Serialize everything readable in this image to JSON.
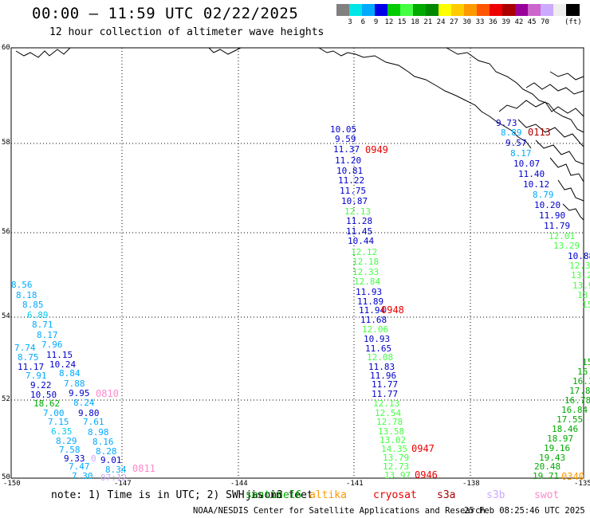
{
  "header": {
    "title": "00:00 – 11:59 UTC 02/22/2025",
    "subtitle": "12 hour collection of altimeter wave heights"
  },
  "legend": {
    "unit": "(ft)",
    "colors": [
      "#808080",
      "#00e6e6",
      "#00aaff",
      "#0000e6",
      "#00cc00",
      "#44ff44",
      "#00aa00",
      "#008800",
      "#ffff00",
      "#ffcc00",
      "#ff9900",
      "#ff5500",
      "#ee0000",
      "#aa0000",
      "#990099",
      "#cc66cc",
      "#ccaaff",
      "#eeeeee",
      "#000000"
    ],
    "labels": [
      "3",
      "6",
      "9",
      "12",
      "15",
      "18",
      "21",
      "24",
      "27",
      "30",
      "33",
      "36",
      "39",
      "42",
      "45",
      "70"
    ]
  },
  "axes": {
    "lat_ticks": [
      "60",
      "58",
      "56",
      "54",
      "52",
      "50"
    ],
    "lon_ticks": [
      "-150",
      "-147",
      "-144",
      "-141",
      "-138",
      "-135"
    ]
  },
  "tracks": [
    {
      "name": "west",
      "color_key": "mixed",
      "labels": [
        {
          "t": "8.56",
          "c": "#00aaff"
        },
        {
          "t": "8.18",
          "c": "#00aaff"
        },
        {
          "t": "8.85",
          "c": "#00aaff"
        },
        {
          "t": "6.89",
          "c": "#00ccee"
        },
        {
          "t": "8.71",
          "c": "#00aaff"
        },
        {
          "t": "8.17",
          "c": "#00aaff"
        },
        {
          "t": "7.74",
          "c": "#00aaff"
        },
        {
          "t": "7.96",
          "c": "#00aaff"
        },
        {
          "t": "8.75",
          "c": "#00aaff"
        },
        {
          "t": "11.15",
          "c": "#0000cc"
        },
        {
          "t": "11.17",
          "c": "#0000cc"
        },
        {
          "t": "10.24",
          "c": "#0000cc"
        },
        {
          "t": "7.91",
          "c": "#00aaff"
        },
        {
          "t": "8.84",
          "c": "#00aaff"
        },
        {
          "t": "9.22",
          "c": "#0000cc"
        },
        {
          "t": "7.88",
          "c": "#00aaff"
        },
        {
          "t": "10.50",
          "c": "#0000cc"
        },
        {
          "t": "9.95",
          "c": "#0000cc"
        },
        {
          "t": "18.62",
          "c": "#00aa00"
        },
        {
          "t": "8.24",
          "c": "#00aaff"
        },
        {
          "t": "7.00",
          "c": "#00aaff"
        },
        {
          "t": "9.80",
          "c": "#0000cc"
        },
        {
          "t": "7.15",
          "c": "#00aaff"
        },
        {
          "t": "7.61",
          "c": "#00aaff"
        },
        {
          "t": "6.35",
          "c": "#00ccee"
        },
        {
          "t": "8.98",
          "c": "#00aaff"
        },
        {
          "t": "8.29",
          "c": "#00aaff"
        },
        {
          "t": "8.16",
          "c": "#00aaff"
        },
        {
          "t": "7.58",
          "c": "#00aaff"
        },
        {
          "t": "8.28",
          "c": "#00aaff"
        },
        {
          "t": "9.33",
          "c": "#0000cc"
        },
        {
          "t": "9.01",
          "c": "#0000cc"
        },
        {
          "t": "7.47",
          "c": "#00aaff"
        },
        {
          "t": "8.34",
          "c": "#00aaff"
        },
        {
          "t": "7.30",
          "c": "#00aaff"
        },
        {
          "t": "0",
          "c": "#ccaaff"
        },
        {
          "t": "07:12",
          "c": "#ccaaff"
        }
      ]
    },
    {
      "name": "central",
      "labels": [
        {
          "t": "10.05",
          "c": "#0000cc"
        },
        {
          "t": "9.59",
          "c": "#0000cc"
        },
        {
          "t": "11.37",
          "c": "#0000cc"
        },
        {
          "t": "11.20",
          "c": "#0000cc"
        },
        {
          "t": "10.81",
          "c": "#0000cc"
        },
        {
          "t": "11.22",
          "c": "#0000cc"
        },
        {
          "t": "11.75",
          "c": "#0000cc"
        },
        {
          "t": "10.87",
          "c": "#0000cc"
        },
        {
          "t": "12.13",
          "c": "#44ff44"
        },
        {
          "t": "11.28",
          "c": "#0000cc"
        },
        {
          "t": "11.45",
          "c": "#0000cc"
        },
        {
          "t": "10.44",
          "c": "#0000cc"
        },
        {
          "t": "12.12",
          "c": "#44ff44"
        },
        {
          "t": "12.18",
          "c": "#44ff44"
        },
        {
          "t": "12.33",
          "c": "#44ff44"
        },
        {
          "t": "12.84",
          "c": "#44ff44"
        },
        {
          "t": "11.93",
          "c": "#0000cc"
        },
        {
          "t": "11.89",
          "c": "#0000cc"
        },
        {
          "t": "11.94",
          "c": "#0000cc"
        },
        {
          "t": "11.68",
          "c": "#0000cc"
        },
        {
          "t": "12.06",
          "c": "#44ff44"
        },
        {
          "t": "10.93",
          "c": "#0000cc"
        },
        {
          "t": "11.65",
          "c": "#0000cc"
        },
        {
          "t": "12.08",
          "c": "#44ff44"
        },
        {
          "t": "11.83",
          "c": "#0000cc"
        },
        {
          "t": "11.96",
          "c": "#0000cc"
        },
        {
          "t": "11.77",
          "c": "#0000cc"
        },
        {
          "t": "11.77",
          "c": "#0000cc"
        },
        {
          "t": "12.13",
          "c": "#44ff44"
        },
        {
          "t": "12.54",
          "c": "#44ff44"
        },
        {
          "t": "12.78",
          "c": "#44ff44"
        },
        {
          "t": "13.58",
          "c": "#44ff44"
        },
        {
          "t": "13.02",
          "c": "#44ff44"
        },
        {
          "t": "14.35",
          "c": "#44ff44"
        },
        {
          "t": "13.79",
          "c": "#44ff44"
        },
        {
          "t": "12.73",
          "c": "#44ff44"
        },
        {
          "t": "13.97",
          "c": "#44ff44"
        }
      ]
    },
    {
      "name": "east",
      "labels": [
        {
          "t": "9.73",
          "c": "#0000cc"
        },
        {
          "t": "8.89",
          "c": "#00aaff"
        },
        {
          "t": "9.57",
          "c": "#0000cc"
        },
        {
          "t": "8.17",
          "c": "#00aaff"
        },
        {
          "t": "10.07",
          "c": "#0000cc"
        },
        {
          "t": "11.40",
          "c": "#0000cc"
        },
        {
          "t": "10.12",
          "c": "#0000cc"
        },
        {
          "t": "8.79",
          "c": "#00aaff"
        },
        {
          "t": "10.20",
          "c": "#0000cc"
        },
        {
          "t": "11.90",
          "c": "#0000cc"
        },
        {
          "t": "11.79",
          "c": "#0000cc"
        },
        {
          "t": "12.01",
          "c": "#44ff44"
        },
        {
          "t": "13.29",
          "c": "#44ff44"
        },
        {
          "t": "12.36",
          "c": "#44ff44"
        },
        {
          "t": "10.88",
          "c": "#0000cc"
        },
        {
          "t": "13.29",
          "c": "#44ff44"
        },
        {
          "t": "13.9",
          "c": "#44ff44"
        },
        {
          "t": "13",
          "c": "#44ff44"
        },
        {
          "t": "15",
          "c": "#44ff44"
        }
      ]
    },
    {
      "name": "southeast",
      "labels": [
        {
          "t": "15",
          "c": "#00aa00"
        },
        {
          "t": "16.",
          "c": "#00aa00"
        },
        {
          "t": "16.3",
          "c": "#00aa00"
        },
        {
          "t": "17.8",
          "c": "#00aa00"
        },
        {
          "t": "16.78",
          "c": "#00aa00"
        },
        {
          "t": "16.84",
          "c": "#00aa00"
        },
        {
          "t": "17.55",
          "c": "#00aa00"
        },
        {
          "t": "18.46",
          "c": "#00aa00"
        },
        {
          "t": "18.97",
          "c": "#00aa00"
        },
        {
          "t": "19.16",
          "c": "#00aa00"
        },
        {
          "t": "19.43",
          "c": "#00aa00"
        },
        {
          "t": "20.48",
          "c": "#00aa00"
        },
        {
          "t": "19.71",
          "c": "#00aa00"
        }
      ]
    }
  ],
  "passes": [
    {
      "t": "0949",
      "c": "#ee0000"
    },
    {
      "t": "0948",
      "c": "#ee0000"
    },
    {
      "t": "0947",
      "c": "#ee0000"
    },
    {
      "t": "0946",
      "c": "#ee0000"
    },
    {
      "t": "0810",
      "c": "#ff88cc"
    },
    {
      "t": "0811",
      "c": "#ff88cc"
    },
    {
      "t": "0113",
      "c": "#aa0000"
    },
    {
      "t": "0340",
      "c": "#ff9900"
    }
  ],
  "footer": {
    "note": "note: 1) Time is in UTC; 2) SWH is in feet",
    "satellites": [
      {
        "t": "jason3",
        "c": "#000000"
      },
      {
        "t": "sentinel6",
        "c": "#00aa00"
      },
      {
        "t": "altika",
        "c": "#ff9900"
      },
      {
        "t": "cryosat",
        "c": "#ee0000"
      },
      {
        "t": "s3a",
        "c": "#aa0000"
      },
      {
        "t": "s3b",
        "c": "#ccaaff"
      },
      {
        "t": "swot",
        "c": "#ff88cc"
      }
    ],
    "credit": "NOAA/NESDIS Center for Satellite Applications and Research",
    "date": "25 Feb 08:25:46 UTC 2025"
  }
}
